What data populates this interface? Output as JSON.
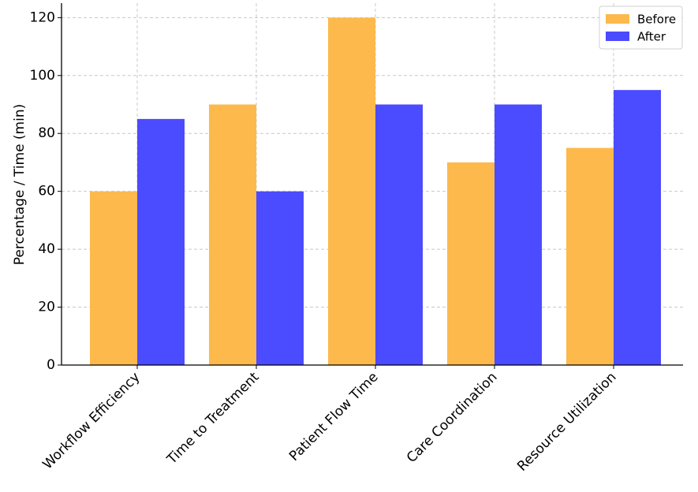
{
  "chart_data": {
    "type": "bar",
    "title": "",
    "xlabel": "",
    "ylabel": "Percentage / Time (min)",
    "categories": [
      "Workflow Efficiency",
      "Time to Treatment",
      "Patient Flow Time",
      "Care Coordination",
      "Resource Utilization"
    ],
    "series": [
      {
        "name": "Before",
        "color": "#FDB94C",
        "values": [
          60,
          90,
          120,
          70,
          75
        ]
      },
      {
        "name": "After",
        "color": "#4B4BFF",
        "values": [
          85,
          60,
          90,
          90,
          95
        ]
      }
    ],
    "ylim": [
      0,
      125
    ],
    "yticks": [
      0,
      20,
      40,
      60,
      80,
      100,
      120
    ],
    "grid": true,
    "legend_position": "top-right"
  }
}
